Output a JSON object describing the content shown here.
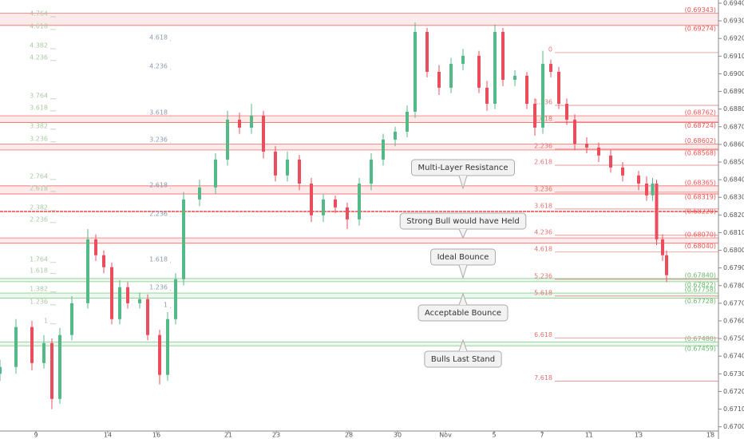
{
  "chart_data": {
    "type": "candlestick",
    "up_color": "#53b987",
    "down_color": "#eb4d5c",
    "xlim": [
      0,
      180
    ],
    "ylim": [
      0.66976,
      0.69418
    ],
    "xticks": [
      {
        "value": 9,
        "label": "9"
      },
      {
        "value": 27,
        "label": "14"
      },
      {
        "value": 39.2,
        "label": "16"
      },
      {
        "value": 57.2,
        "label": "21"
      },
      {
        "value": 69.2,
        "label": "23"
      },
      {
        "value": 87.4,
        "label": "28"
      },
      {
        "value": 99.6,
        "label": "30"
      },
      {
        "value": 111.6,
        "label": "Nov"
      },
      {
        "value": 123.8,
        "label": "5"
      },
      {
        "value": 135.8,
        "label": "7"
      },
      {
        "value": 147.6,
        "label": "11"
      },
      {
        "value": 160,
        "label": "13"
      },
      {
        "value": 178,
        "label": "18"
      }
    ],
    "yticks": [
      {
        "value": 0.67,
        "label": "0.67000"
      },
      {
        "value": 0.671,
        "label": "0.67100"
      },
      {
        "value": 0.672,
        "label": "0.67200"
      },
      {
        "value": 0.673,
        "label": "0.67300"
      },
      {
        "value": 0.674,
        "label": "0.67400"
      },
      {
        "value": 0.675,
        "label": "0.67500"
      },
      {
        "value": 0.676,
        "label": "0.67600"
      },
      {
        "value": 0.677,
        "label": "0.67700"
      },
      {
        "value": 0.678,
        "label": "0.67800"
      },
      {
        "value": 0.679,
        "label": "0.67900"
      },
      {
        "value": 0.68,
        "label": "0.68000"
      },
      {
        "value": 0.681,
        "label": "0.68100"
      },
      {
        "value": 0.682,
        "label": "0.68200"
      },
      {
        "value": 0.683,
        "label": "0.68300"
      },
      {
        "value": 0.684,
        "label": "0.68400"
      },
      {
        "value": 0.685,
        "label": "0.68500"
      },
      {
        "value": 0.686,
        "label": "0.68600"
      },
      {
        "value": 0.687,
        "label": "0.68700"
      },
      {
        "value": 0.688,
        "label": "0.68800"
      },
      {
        "value": 0.689,
        "label": "0.68900"
      },
      {
        "value": 0.69,
        "label": "0.69000"
      },
      {
        "value": 0.691,
        "label": "0.69100"
      },
      {
        "value": 0.692,
        "label": "0.69200"
      },
      {
        "value": 0.693,
        "label": "0.69300"
      },
      {
        "value": 0.694,
        "label": "0.69400"
      }
    ],
    "x": [
      0,
      4,
      8,
      11,
      13,
      15,
      18,
      22,
      24,
      26,
      28,
      30,
      32,
      35,
      37,
      40,
      42,
      44,
      46,
      50,
      54,
      57,
      60,
      63,
      66,
      69,
      72,
      75,
      78,
      81,
      84,
      87,
      90,
      93,
      96,
      99,
      102,
      104,
      107,
      110,
      113,
      116,
      120,
      122,
      124,
      126,
      129,
      132,
      134,
      136,
      138,
      140,
      142,
      144,
      147,
      150,
      153,
      156,
      160,
      162,
      163.5,
      164.5,
      166,
      167
    ],
    "open": [
      0.673,
      0.67339,
      0.67565,
      0.67361,
      0.67474,
      0.67158,
      0.6752,
      0.677,
      0.68062,
      0.67972,
      0.67904,
      0.6761,
      0.67791,
      0.677,
      0.67723,
      0.6752,
      0.67294,
      0.6761,
      0.67836,
      0.68288,
      0.68356,
      0.68514,
      0.6874,
      0.68695,
      0.68763,
      0.68559,
      0.68424,
      0.68514,
      0.68378,
      0.68198,
      0.68288,
      0.68243,
      0.68175,
      0.68378,
      0.68514,
      0.68627,
      0.68672,
      0.68785,
      0.69237,
      0.69011,
      0.68921,
      0.69056,
      0.69102,
      0.68921,
      0.6883,
      0.69237,
      0.68966,
      0.68989,
      0.6883,
      0.68695,
      0.69056,
      0.69011,
      0.6883,
      0.6874,
      0.68604,
      0.68582,
      0.68537,
      0.68469,
      0.68424,
      0.68378,
      0.68311,
      0.68378,
      0.68062,
      0.67972
    ],
    "high": [
      0.6738,
      0.6761,
      0.676,
      0.6752,
      0.675,
      0.6756,
      0.6774,
      0.6812,
      0.6809,
      0.68,
      0.6793,
      0.6783,
      0.6782,
      0.6776,
      0.6775,
      0.6755,
      0.6765,
      0.6787,
      0.6833,
      0.684,
      0.6855,
      0.6879,
      0.6878,
      0.6883,
      0.6879,
      0.6859,
      0.6856,
      0.6854,
      0.6841,
      0.6832,
      0.6831,
      0.6827,
      0.6841,
      0.6855,
      0.6866,
      0.687,
      0.6882,
      0.6929,
      0.6926,
      0.6905,
      0.6909,
      0.6914,
      0.6913,
      0.6896,
      0.6928,
      0.6926,
      0.6902,
      0.6901,
      0.6886,
      0.6913,
      0.6908,
      0.6904,
      0.6886,
      0.6877,
      0.6864,
      0.6861,
      0.6857,
      0.685,
      0.6845,
      0.6842,
      0.6841,
      0.684,
      0.6809,
      0.68
    ],
    "low": [
      0.6726,
      0.673,
      0.6732,
      0.6733,
      0.671,
      0.6713,
      0.6749,
      0.6767,
      0.6794,
      0.6787,
      0.6758,
      0.6758,
      0.6767,
      0.6767,
      0.6749,
      0.6724,
      0.6726,
      0.6758,
      0.678,
      0.6825,
      0.6832,
      0.6848,
      0.6866,
      0.6866,
      0.6852,
      0.6839,
      0.6839,
      0.6834,
      0.6816,
      0.6816,
      0.6821,
      0.6812,
      0.6814,
      0.6834,
      0.6848,
      0.6859,
      0.6864,
      0.6875,
      0.6898,
      0.6888,
      0.6889,
      0.6902,
      0.6889,
      0.6879,
      0.688,
      0.6893,
      0.6893,
      0.688,
      0.6865,
      0.6866,
      0.6898,
      0.688,
      0.6871,
      0.6857,
      0.6855,
      0.685,
      0.6844,
      0.6839,
      0.6834,
      0.6828,
      0.6828,
      0.6803,
      0.6794,
      0.6782
    ],
    "close": [
      0.67339,
      0.67565,
      0.67361,
      0.67474,
      0.67158,
      0.6752,
      0.677,
      0.68062,
      0.67972,
      0.67904,
      0.6761,
      0.67791,
      0.677,
      0.67723,
      0.6752,
      0.67294,
      0.6761,
      0.67836,
      0.68288,
      0.68356,
      0.68514,
      0.6874,
      0.68695,
      0.68763,
      0.68559,
      0.68424,
      0.68514,
      0.68378,
      0.68198,
      0.68288,
      0.68243,
      0.68175,
      0.68378,
      0.68514,
      0.68627,
      0.68672,
      0.68785,
      0.69237,
      0.69011,
      0.68921,
      0.69056,
      0.69102,
      0.68921,
      0.6883,
      0.69237,
      0.68966,
      0.68989,
      0.6883,
      0.68695,
      0.69056,
      0.69011,
      0.6883,
      0.6874,
      0.68604,
      0.68582,
      0.68537,
      0.68469,
      0.68424,
      0.68378,
      0.68311,
      0.68378,
      0.68062,
      0.67972,
      0.67859
    ],
    "zones": [
      {
        "color": "#ef5350",
        "levels": [
          {
            "value": 0.69343,
            "label": "(0.69343)"
          },
          {
            "value": 0.69274,
            "label": "(0.69274)"
          }
        ]
      },
      {
        "color": "#ef5350",
        "levels": [
          {
            "value": 0.68762,
            "label": "(0.68762)"
          },
          {
            "value": 0.68724,
            "label": "(0.68724)"
          }
        ]
      },
      {
        "color": "#ef5350",
        "levels": [
          {
            "value": 0.68602,
            "label": "(0.68602)"
          },
          {
            "value": 0.68568,
            "label": "(0.68568)"
          }
        ]
      },
      {
        "color": "#ef5350",
        "levels": [
          {
            "value": 0.68365,
            "label": "(0.68365)"
          },
          {
            "value": 0.68319,
            "label": "(0.68319)"
          }
        ]
      },
      {
        "color": "#ef5350",
        "levels": [
          {
            "value": 0.6822,
            "label": "(0.68220)"
          }
        ]
      },
      {
        "color": "#ef5350",
        "levels": [
          {
            "value": 0.6807,
            "label": "(0.68070)"
          },
          {
            "value": 0.6804,
            "label": "(0.68040)"
          }
        ]
      },
      {
        "color": "#66bb6a",
        "levels": [
          {
            "value": 0.6784,
            "label": "(0.67840)"
          },
          {
            "value": 0.67822,
            "label": "(0.67822)"
          }
        ]
      },
      {
        "color": "#66bb6a",
        "levels": [
          {
            "value": 0.67758,
            "label": "(0.67758)"
          },
          {
            "value": 0.67728,
            "label": "(0.67728)"
          }
        ]
      },
      {
        "color": "#66bb6a",
        "levels": [
          {
            "value": 0.6748,
            "label": "(0.67480)"
          },
          {
            "value": 0.67459,
            "label": "(0.67459)"
          }
        ]
      }
    ],
    "fibs": [
      {
        "color": "#a9c9a4",
        "levels": [
          {
            "value": 0.69341,
            "label": "4.764"
          },
          {
            "value": 0.69269,
            "label": "4.618"
          },
          {
            "value": 0.6916,
            "label": "4.382"
          },
          {
            "value": 0.69093,
            "label": "4.236"
          },
          {
            "value": 0.68876,
            "label": "3.764"
          },
          {
            "value": 0.68808,
            "label": "3.618"
          },
          {
            "value": 0.68704,
            "label": "3.382"
          },
          {
            "value": 0.68632,
            "label": "3.236"
          },
          {
            "value": 0.68419,
            "label": "2.764"
          },
          {
            "value": 0.68351,
            "label": "2.618"
          },
          {
            "value": 0.68243,
            "label": "2.382"
          },
          {
            "value": 0.68175,
            "label": "2.236"
          },
          {
            "value": 0.67949,
            "label": "1.764"
          },
          {
            "value": 0.67886,
            "label": "1.618"
          },
          {
            "value": 0.67782,
            "label": "1.382"
          },
          {
            "value": 0.67709,
            "label": "1.236"
          },
          {
            "value": 0.67601,
            "label": "1"
          }
        ]
      },
      {
        "color": "#8a9bb0",
        "levels": [
          {
            "value": 0.69206,
            "label": "4.618"
          },
          {
            "value": 0.69043,
            "label": "4.236"
          },
          {
            "value": 0.68781,
            "label": "3.618"
          },
          {
            "value": 0.68627,
            "label": "3.236"
          },
          {
            "value": 0.68369,
            "label": "2.618"
          },
          {
            "value": 0.68207,
            "label": "2.236"
          },
          {
            "value": 0.67949,
            "label": "1.618"
          },
          {
            "value": 0.67791,
            "label": "1.236"
          },
          {
            "value": 0.67691,
            "label": "1"
          }
        ]
      },
      {
        "color": "#e57373",
        "levels": [
          {
            "value": 0.69138,
            "label": "0"
          },
          {
            "value": 0.68839,
            "label": "1.236"
          },
          {
            "value": 0.68745,
            "label": "1.618"
          },
          {
            "value": 0.68591,
            "label": "2.236"
          },
          {
            "value": 0.685,
            "label": "2.618"
          },
          {
            "value": 0.68347,
            "label": "3.236"
          },
          {
            "value": 0.68252,
            "label": "3.618"
          },
          {
            "value": 0.68103,
            "label": "4.236"
          },
          {
            "value": 0.68008,
            "label": "4.618"
          },
          {
            "value": 0.67854,
            "label": "5.236"
          },
          {
            "value": 0.67759,
            "label": "5.618"
          },
          {
            "value": 0.6752,
            "label": "6.618"
          },
          {
            "value": 0.67276,
            "label": "7.618"
          }
        ]
      }
    ],
    "annotations": [
      "Multi-Layer Resistance",
      "Strong Bull would have Held",
      "Ideal Bounce",
      "Acceptable Bounce",
      "Bulls Last Stand"
    ]
  }
}
